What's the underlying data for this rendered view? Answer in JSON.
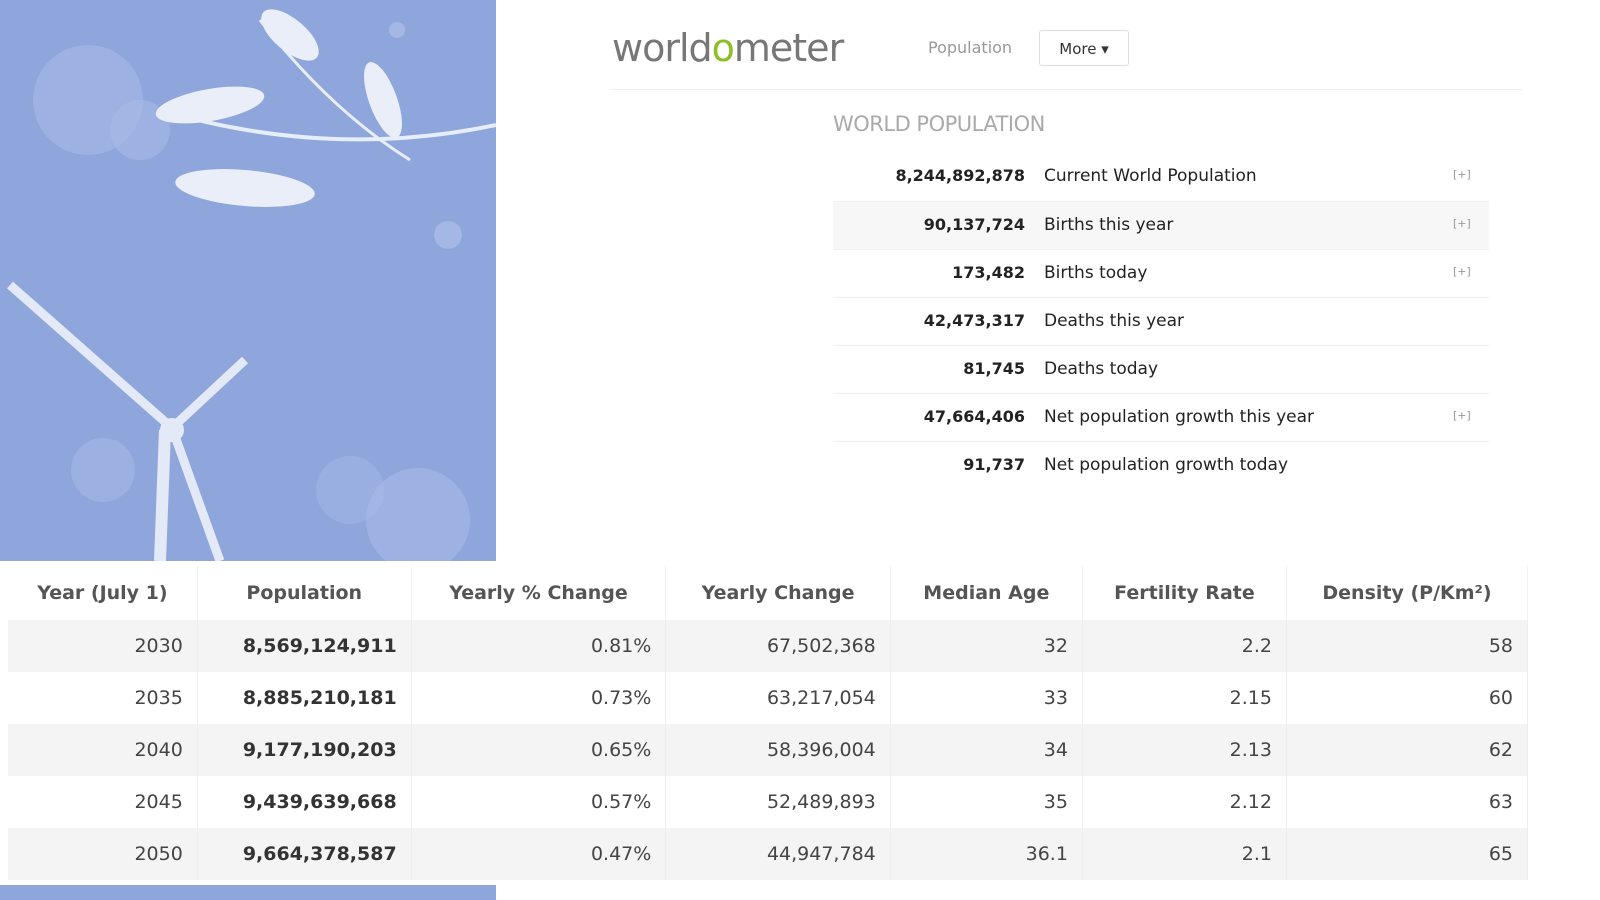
{
  "header": {
    "logo": [
      "world",
      "o",
      "meter"
    ],
    "nav": [
      "Population",
      "More"
    ]
  },
  "counters": {
    "title": "WORLD POPULATION",
    "rows": [
      {
        "value": "8,244,892,878",
        "label": "Current World Population",
        "expand": "[+]"
      },
      {
        "value": "90,137,724",
        "label": "Births this year",
        "expand": "[+]"
      },
      {
        "value": "173,482",
        "label": "Births today",
        "expand": "[+]"
      },
      {
        "value": "42,473,317",
        "label": "Deaths this year"
      },
      {
        "value": "81,745",
        "label": "Deaths today"
      },
      {
        "value": "47,664,406",
        "label": "Net population growth this year",
        "expand": "[+]"
      },
      {
        "value": "91,737",
        "label": "Net population growth today"
      }
    ]
  },
  "table": {
    "headers": [
      "Year (July 1)",
      "Population",
      "Yearly % Change",
      "Yearly Change",
      "Median Age",
      "Fertility Rate",
      "Density (P/Km²)"
    ],
    "rows": [
      [
        "2030",
        "8,569,124,911",
        "0.81%",
        "67,502,368",
        "32",
        "2.2",
        "58"
      ],
      [
        "2035",
        "8,885,210,181",
        "0.73%",
        "63,217,054",
        "33",
        "2.15",
        "60"
      ],
      [
        "2040",
        "9,177,190,203",
        "0.65%",
        "58,396,004",
        "34",
        "2.13",
        "62"
      ],
      [
        "2045",
        "9,439,639,668",
        "0.57%",
        "52,489,893",
        "35",
        "2.12",
        "63"
      ],
      [
        "2050",
        "9,664,378,587",
        "0.47%",
        "44,947,784",
        "36.1",
        "2.1",
        "65"
      ]
    ]
  }
}
